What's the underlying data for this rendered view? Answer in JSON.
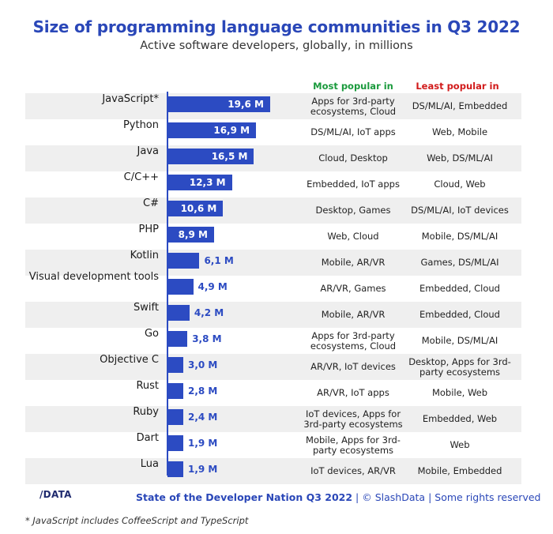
{
  "chart_data": {
    "type": "bar",
    "orientation": "horizontal",
    "title": "Size of programming language communities in Q3 2022",
    "subtitle": "Active software developers, globally, in millions",
    "unit": "M",
    "categories": [
      "JavaScript*",
      "Python",
      "Java",
      "C/C++",
      "C#",
      "PHP",
      "Kotlin",
      "Visual development tools",
      "Swift",
      "Go",
      "Objective C",
      "Rust",
      "Ruby",
      "Dart",
      "Lua"
    ],
    "values": [
      19.6,
      16.9,
      16.5,
      12.3,
      10.6,
      8.9,
      6.1,
      4.9,
      4.2,
      3.8,
      3.0,
      2.8,
      2.4,
      1.9,
      1.9
    ],
    "value_labels": [
      "19,6 M",
      "16,9 M",
      "16,5 M",
      "12,3 M",
      "10,6 M",
      "8,9 M",
      "6,1 M",
      "4,9 M",
      "4,2 M",
      "3,8 M",
      "3,0 M",
      "2,8 M",
      "2,4 M",
      "1,9 M",
      "1,9 M"
    ],
    "bar_color": "#2c4bc2",
    "columns": {
      "most_header": "Most popular in",
      "least_header": "Least popular in",
      "most_color": "#1a9a3c",
      "least_color": "#d11a1a",
      "most": [
        "Apps for 3rd-party ecosystems, Cloud",
        "DS/ML/AI, IoT apps",
        "Cloud, Desktop",
        "Embedded, IoT apps",
        "Desktop, Games",
        "Web, Cloud",
        "Mobile, AR/VR",
        "AR/VR, Games",
        "Mobile, AR/VR",
        "Apps for 3rd-party ecosystems, Cloud",
        "AR/VR, IoT devices",
        "AR/VR, IoT apps",
        "IoT devices, Apps for 3rd-party ecosystems",
        "Mobile, Apps for 3rd-party ecosystems",
        "IoT devices, AR/VR"
      ],
      "least": [
        "DS/ML/AI, Embedded",
        "Web, Mobile",
        "Web, DS/ML/AI",
        "Cloud, Web",
        "DS/ML/AI, IoT devices",
        "Mobile, DS/ML/AI",
        "Games, DS/ML/AI",
        "Embedded, Cloud",
        "Embedded, Cloud",
        "Mobile, DS/ML/AI",
        "Desktop, Apps for 3rd-party ecosystems",
        "Mobile, Web",
        "Embedded, Web",
        "Web",
        "Mobile, Embedded"
      ]
    }
  },
  "logo": "/DATA",
  "footer": {
    "source": "State of the Developer Nation Q3 2022",
    "separator": "|",
    "copyright": "© SlashData",
    "separator2": "|",
    "rights": "Some rights reserved"
  },
  "footnote": "* JavaScript includes CoffeeScript and TypeScript"
}
